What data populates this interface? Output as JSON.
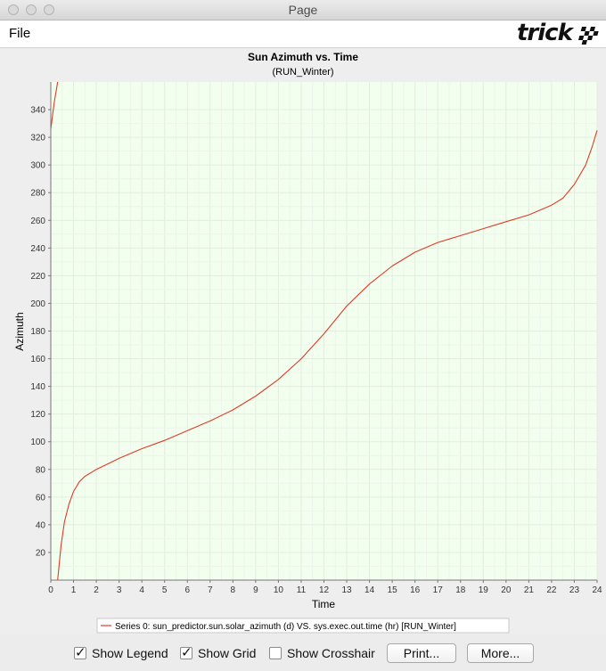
{
  "window": {
    "title": "Page"
  },
  "menu": {
    "file_label": "File"
  },
  "logo": {
    "text": "trick"
  },
  "chart_data": {
    "type": "line",
    "title": "Sun Azimuth vs. Time",
    "subtitle": "(RUN_Winter)",
    "xlabel": "Time",
    "ylabel": "Azimuth",
    "xlim": [
      0,
      24
    ],
    "ylim": [
      0,
      360
    ],
    "x_ticks": [
      0,
      1,
      2,
      3,
      4,
      5,
      6,
      7,
      8,
      9,
      10,
      11,
      12,
      13,
      14,
      15,
      16,
      17,
      18,
      19,
      20,
      21,
      22,
      23,
      24
    ],
    "y_ticks": [
      20,
      40,
      60,
      80,
      100,
      120,
      140,
      160,
      180,
      200,
      220,
      240,
      260,
      280,
      300,
      320,
      340
    ],
    "grid": true,
    "background_color": "#f2ffee",
    "series": [
      {
        "name": "Series 0: sun_predictor.sun.solar_azimuth (d) VS. sys.exec.out.time (hr) [RUN_Winter]",
        "color": "#e03a2a",
        "segments": [
          [
            [
              0.0,
              326
            ],
            [
              0.15,
              345
            ],
            [
              0.3,
              360
            ]
          ],
          [
            [
              0.3,
              0
            ],
            [
              0.45,
              25
            ],
            [
              0.6,
              42
            ],
            [
              0.8,
              55
            ],
            [
              1.0,
              64
            ],
            [
              1.25,
              71
            ],
            [
              1.5,
              75
            ],
            [
              2.0,
              80
            ],
            [
              2.5,
              84
            ],
            [
              3.0,
              88
            ],
            [
              4.0,
              95
            ],
            [
              5.0,
              101
            ],
            [
              6.0,
              108
            ],
            [
              7.0,
              115
            ],
            [
              8.0,
              123
            ],
            [
              9.0,
              133
            ],
            [
              10.0,
              145
            ],
            [
              11.0,
              160
            ],
            [
              12.0,
              178
            ],
            [
              13.0,
              198
            ],
            [
              14.0,
              214
            ],
            [
              15.0,
              227
            ],
            [
              16.0,
              237
            ],
            [
              17.0,
              244
            ],
            [
              18.0,
              249
            ],
            [
              19.0,
              254
            ],
            [
              20.0,
              259
            ],
            [
              21.0,
              264
            ],
            [
              22.0,
              271
            ],
            [
              22.5,
              276
            ],
            [
              23.0,
              286
            ],
            [
              23.5,
              300
            ],
            [
              23.8,
              314
            ],
            [
              24.0,
              325
            ]
          ]
        ]
      }
    ],
    "legend": {
      "position": "bottom"
    }
  },
  "controls": {
    "show_legend_label": "Show Legend",
    "show_legend_checked": true,
    "show_grid_label": "Show Grid",
    "show_grid_checked": true,
    "show_crosshair_label": "Show Crosshair",
    "show_crosshair_checked": false,
    "print_label": "Print...",
    "more_label": "More..."
  }
}
